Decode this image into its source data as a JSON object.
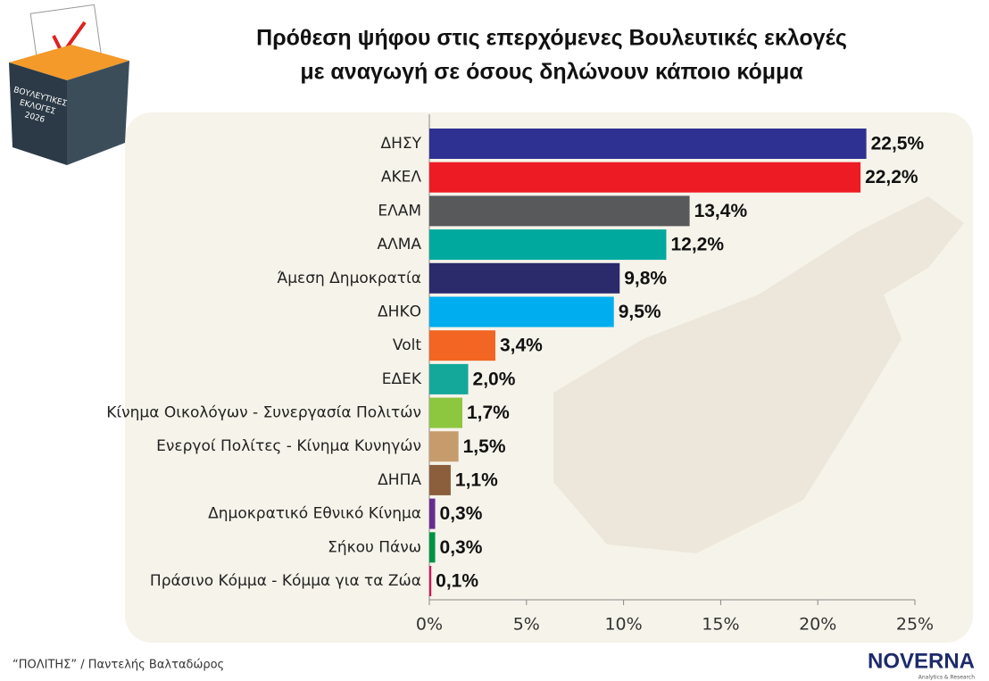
{
  "chart_data": {
    "type": "bar",
    "orientation": "horizontal",
    "title": [
      "Πρόθεση ψήφου στις επερχόμενες Βουλευτικές εκλογές",
      "με αναγωγή σε όσους δηλώνουν κάποιο κόμμα"
    ],
    "categories": [
      "ΔΗΣΥ",
      "ΑΚΕΛ",
      "ΕΛΑΜ",
      "ΑΛΜΑ",
      "Άμεση Δημοκρατία",
      "ΔΗΚΟ",
      "Volt",
      "ΕΔΕΚ",
      "Κίνημα Οικολόγων - Συνεργασία Πολιτών",
      "Ενεργοί Πολίτες - Κίνημα Κυνηγών",
      "ΔΗΠΑ",
      "Δημοκρατικό Εθνικό Κίνημα",
      "Σήκου Πάνω",
      "Πράσινο Κόμμα - Κόμμα για τα Ζώα"
    ],
    "values": [
      22.5,
      22.2,
      13.4,
      12.2,
      9.8,
      9.5,
      3.4,
      2.0,
      1.7,
      1.5,
      1.1,
      0.3,
      0.3,
      0.1
    ],
    "value_labels": [
      "22,5%",
      "22,2%",
      "13,4%",
      "12,2%",
      "9,8%",
      "9,5%",
      "3,4%",
      "2,0%",
      "1,7%",
      "1,5%",
      "1,1%",
      "0,3%",
      "0,3%",
      "0,1%"
    ],
    "colors": [
      "#2e3192",
      "#ed1c24",
      "#58595b",
      "#00a99d",
      "#2b2a6b",
      "#00aeef",
      "#f26522",
      "#14a89a",
      "#8dc63f",
      "#c69c6d",
      "#8b5e3c",
      "#662d91",
      "#009245",
      "#d4145a"
    ],
    "xlim": [
      0,
      25
    ],
    "xticks": [
      {
        "value": 0,
        "label": "0%"
      },
      {
        "value": 5,
        "label": "5%"
      },
      {
        "value": 10,
        "label": "10%"
      },
      {
        "value": 15,
        "label": "15%"
      },
      {
        "value": 20,
        "label": "20%"
      },
      {
        "value": 25,
        "label": "25%"
      }
    ]
  },
  "source": "“ΠΟΛΙΤΗΣ” / Παντελής Βαλταδώρος",
  "logo": {
    "name": "NOVERNA",
    "tagline": "Analytics & Research"
  },
  "badge": [
    "ΒΟΥΛΕΥΤΙΚΕΣ",
    "ΕΚΛΟΓΕΣ",
    "2026"
  ]
}
